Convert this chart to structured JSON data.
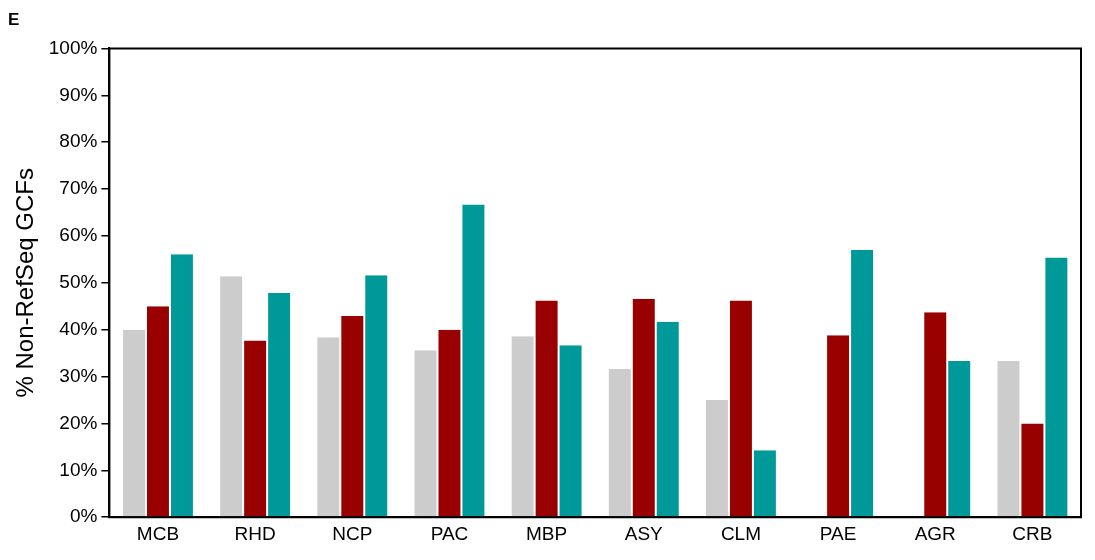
{
  "chart_data": {
    "type": "bar",
    "title": "E",
    "ylabel": "% Non-RefSeq GCFs",
    "categories": [
      "MCB",
      "RHD",
      "NCP",
      "PAC",
      "MBP",
      "ASY",
      "CLM",
      "PAE",
      "AGR",
      "CRB"
    ],
    "series": [
      {
        "color": "#cccccc",
        "values": [
          40,
          51.4,
          38.4,
          35.6,
          38.6,
          31.6,
          25,
          0,
          0,
          33.3
        ]
      },
      {
        "color": "#990000",
        "values": [
          45,
          37.7,
          42.9,
          40,
          46.2,
          46.6,
          46.2,
          38.8,
          43.7,
          20
        ]
      },
      {
        "color": "#009999",
        "values": [
          56.1,
          47.8,
          51.6,
          66.7,
          36.7,
          41.7,
          14.3,
          57,
          33.3,
          55.4
        ]
      }
    ],
    "ylim": [
      0,
      100
    ],
    "yticks": [
      {
        "value": 0,
        "label": "0%"
      },
      {
        "value": 10,
        "label": "10%"
      },
      {
        "value": 20,
        "label": "20%"
      },
      {
        "value": 30,
        "label": "30%"
      },
      {
        "value": 40,
        "label": "40%"
      },
      {
        "value": 50,
        "label": "50%"
      },
      {
        "value": 60,
        "label": "60%"
      },
      {
        "value": 70,
        "label": "70%"
      },
      {
        "value": 80,
        "label": "80%"
      },
      {
        "value": 90,
        "label": "90%"
      },
      {
        "value": 100,
        "label": "100%"
      }
    ],
    "grid": false,
    "legend": false
  }
}
